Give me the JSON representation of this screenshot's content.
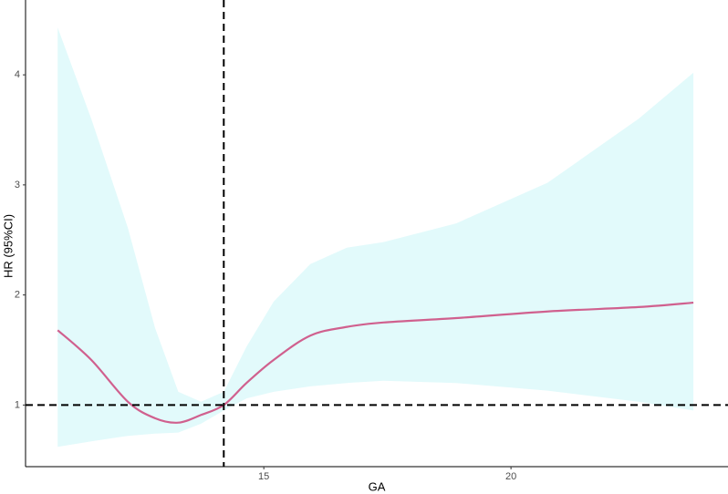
{
  "chart_data": {
    "type": "line",
    "x_label": "GA",
    "y_label": "HR (95%CI)",
    "x": [
      10.83,
      11.51,
      12.25,
      12.8,
      13.27,
      13.73,
      14.19,
      14.65,
      15.2,
      15.94,
      16.68,
      17.42,
      18.89,
      20.74,
      22.58,
      23.69
    ],
    "values": [
      1.68,
      1.41,
      1.03,
      0.88,
      0.84,
      0.91,
      1.0,
      1.2,
      1.41,
      1.63,
      1.71,
      1.75,
      1.79,
      1.85,
      1.89,
      1.93
    ],
    "upper": [
      4.43,
      3.6,
      2.61,
      1.7,
      1.12,
      1.03,
      1.12,
      1.53,
      1.94,
      2.28,
      2.43,
      2.48,
      2.65,
      3.02,
      3.6,
      4.02
    ],
    "lower": [
      0.62,
      0.67,
      0.72,
      0.74,
      0.75,
      0.83,
      0.95,
      1.06,
      1.12,
      1.17,
      1.2,
      1.22,
      1.2,
      1.13,
      1.03,
      0.95
    ],
    "color": "#d0608e",
    "band_color": "#e2fafb",
    "vline": 14.19,
    "hline": 1,
    "xlim": [
      10.18,
      24.39
    ],
    "ylim": [
      0.44,
      4.68
    ],
    "xticks": [
      15,
      20
    ],
    "yticks": [
      1,
      2,
      3,
      4
    ],
    "grid": false
  }
}
